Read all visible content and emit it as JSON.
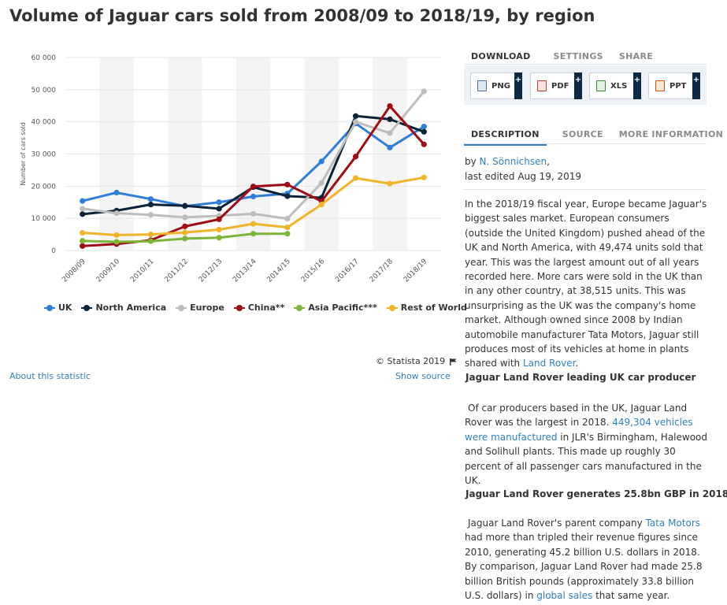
{
  "title": "Volume of Jaguar cars sold from 2008/09 to 2018/19, by region",
  "chart_data": {
    "type": "line",
    "ylabel": "Number of cars sold",
    "ylim": [
      0,
      60000
    ],
    "yticks": [
      "0",
      "10 000",
      "20 000",
      "30 000",
      "40 000",
      "50 000",
      "60 000"
    ],
    "categories": [
      "2008/09",
      "2009/10",
      "2010/11",
      "2011/12",
      "2012/13",
      "2013/14",
      "2014/15",
      "2015/16",
      "2016/17",
      "2017/18",
      "2018/19"
    ],
    "grid": true,
    "legend_position": "bottom",
    "series": [
      {
        "name": "UK",
        "color": "#2f7ed8",
        "values": [
          15400,
          18000,
          16000,
          13800,
          15000,
          16800,
          17700,
          27700,
          39500,
          32000,
          38515
        ]
      },
      {
        "name": "North America",
        "color": "#0d233a",
        "values": [
          11300,
          12400,
          14300,
          13900,
          13000,
          19700,
          16900,
          16400,
          41800,
          40800,
          36900
        ]
      },
      {
        "name": "Europe",
        "color": "#bdbdbd",
        "values": [
          13000,
          11600,
          11100,
          10300,
          10800,
          11400,
          9900,
          21000,
          40000,
          36500,
          49474
        ]
      },
      {
        "name": "China**",
        "color": "#a00c14",
        "values": [
          1400,
          2000,
          3200,
          7500,
          9700,
          19900,
          20500,
          15300,
          29200,
          44900,
          33000
        ]
      },
      {
        "name": "Asia Pacific***",
        "color": "#7cb638",
        "values": [
          3000,
          2700,
          2900,
          3700,
          4000,
          5200,
          5200,
          null,
          null,
          null,
          null
        ]
      },
      {
        "name": "Rest of World",
        "color": "#f0b429",
        "values": [
          5500,
          4800,
          5000,
          5600,
          6500,
          8300,
          7200,
          14300,
          22500,
          20800,
          22700
        ]
      }
    ]
  },
  "credit": "© Statista 2019",
  "links": {
    "about": "About this statistic",
    "source": "Show source"
  },
  "tabs_top": [
    "DOWNLOAD",
    "SETTINGS",
    "SHARE"
  ],
  "downloads": [
    {
      "label": "PNG",
      "icon": "png-file-icon",
      "plus": "+"
    },
    {
      "label": "PDF",
      "icon": "pdf-file-icon",
      "plus": "+"
    },
    {
      "label": "XLS",
      "icon": "xls-file-icon",
      "plus": "+"
    },
    {
      "label": "PPT",
      "icon": "ppt-file-icon",
      "plus": "+"
    }
  ],
  "tabs_bottom": [
    "DESCRIPTION",
    "SOURCE",
    "MORE INFORMATION"
  ],
  "meta": {
    "by": "by ",
    "author": "N. Sönnichsen",
    "comma": ",",
    "edited": "last edited Aug 19, 2019"
  },
  "desc1": {
    "text": "In the 2018/19 fiscal year, Europe became Jaguar's biggest sales market. European consumers (outside the United Kingdom) pushed ahead of the UK and North America, with 49,474 units sold that year. This was the largest amount out of all years recorded here. More cars were sold in the UK than in any other country, at 38,515 units. This was unsurprising as the UK was the company's home market. Although owned since 2008 by Indian automobile manufacturer Tata Motors, Jaguar still produces most of its vehicles at home in plants shared with ",
    "link": "Land Rover",
    "end": "."
  },
  "sub1": "Jaguar Land Rover leading UK car producer",
  "desc2": {
    "a": "Of car producers based in the UK, Jaguar Land Rover was the largest in 2018. ",
    "link": "449,304 vehicles were manufactured",
    "b": " in JLR's Birmingham, Halewood and Solihull plants. This made up roughly 30 percent of all passenger cars manufactured in the UK."
  },
  "sub2": "Jaguar Land Rover generates 25.8bn GBP in 2018",
  "desc3": {
    "a": "Jaguar Land Rover's parent company ",
    "link1": "Tata Motors",
    "b": " had more than tripled their revenue figures since 2010, generating 45.2 billion U.S. dollars in 2018. By comparison, Jaguar Land Rover had made 25.8 billion British pounds (approximately 33.8 billion U.S. dollars) in ",
    "link2": "global sales",
    "c": " that same year."
  }
}
